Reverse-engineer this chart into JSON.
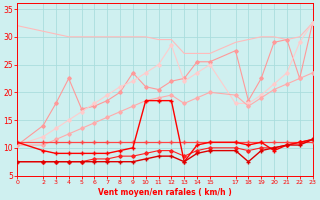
{
  "bg_color": "#cff0f0",
  "grid_color": "#aadddd",
  "x_ticks": [
    0,
    2,
    3,
    4,
    5,
    6,
    7,
    8,
    9,
    10,
    11,
    12,
    13,
    14,
    15,
    17,
    18,
    19,
    20,
    21,
    22,
    23
  ],
  "xlabel": "Vent moyen/en rafales ( km/h )",
  "ylim": [
    5,
    36
  ],
  "xlim": [
    0,
    23
  ],
  "yticks": [
    5,
    10,
    15,
    20,
    25,
    30,
    35
  ],
  "line1_x": [
    0,
    2,
    3,
    4,
    5,
    6,
    7,
    8,
    9,
    10,
    11,
    12,
    13,
    14,
    15,
    17,
    18,
    19,
    20,
    21,
    22,
    23
  ],
  "line1_y": [
    32.0,
    31.0,
    30.5,
    30.0,
    30.0,
    30.0,
    30.0,
    30.0,
    30.0,
    30.0,
    29.5,
    29.5,
    27.0,
    27.0,
    27.0,
    29.0,
    29.5,
    30.0,
    30.0,
    29.5,
    30.0,
    32.5
  ],
  "line1_color": "#ffbbbb",
  "line1_lw": 0.8,
  "line2_x": [
    0,
    2,
    3,
    4,
    5,
    6,
    7,
    8,
    9,
    10,
    11,
    12,
    13,
    14,
    15,
    17,
    18,
    19,
    20,
    21,
    22,
    23
  ],
  "line2_y": [
    10.5,
    14.0,
    18.0,
    22.5,
    17.0,
    17.5,
    18.5,
    20.0,
    23.5,
    21.0,
    20.5,
    22.0,
    22.5,
    25.5,
    25.5,
    27.5,
    18.5,
    22.5,
    29.0,
    29.5,
    22.5,
    32.5
  ],
  "line2_color": "#ff9999",
  "line2_lw": 0.8,
  "line2_marker": "D",
  "line3_x": [
    0,
    2,
    3,
    4,
    5,
    6,
    7,
    8,
    9,
    10,
    11,
    12,
    13,
    14,
    15,
    17,
    18,
    19,
    20,
    21,
    22,
    23
  ],
  "line3_y": [
    10.5,
    12.0,
    13.5,
    15.0,
    16.5,
    18.0,
    19.5,
    21.0,
    22.0,
    23.5,
    25.0,
    28.5,
    22.0,
    23.5,
    25.0,
    18.0,
    18.0,
    19.5,
    21.5,
    23.5,
    29.0,
    32.5
  ],
  "line3_color": "#ffcccc",
  "line3_lw": 0.8,
  "line3_marker": "D",
  "line4_x": [
    0,
    2,
    3,
    4,
    5,
    6,
    7,
    8,
    9,
    10,
    11,
    12,
    13,
    14,
    15,
    17,
    18,
    19,
    20,
    21,
    22,
    23
  ],
  "line4_y": [
    10.5,
    10.5,
    11.5,
    12.5,
    13.5,
    14.5,
    15.5,
    16.5,
    17.5,
    18.5,
    19.0,
    19.5,
    18.0,
    19.0,
    20.0,
    19.5,
    17.5,
    19.0,
    20.5,
    21.5,
    22.5,
    23.5
  ],
  "line4_color": "#ffaaaa",
  "line4_lw": 0.8,
  "line4_marker": "D",
  "line5_x": [
    0,
    2,
    3,
    4,
    5,
    6,
    7,
    8,
    9,
    10,
    11,
    12,
    13,
    14,
    15,
    17,
    18,
    19,
    20,
    21,
    22,
    23
  ],
  "line5_y": [
    11.0,
    11.0,
    11.0,
    11.0,
    11.0,
    11.0,
    11.0,
    11.0,
    11.0,
    11.0,
    11.0,
    11.0,
    11.0,
    11.0,
    11.0,
    11.0,
    11.0,
    11.0,
    11.0,
    11.0,
    11.0,
    11.0
  ],
  "line5_color": "#ff4444",
  "line5_lw": 0.9,
  "line5_marker": "+",
  "line6_x": [
    0,
    2,
    3,
    4,
    5,
    6,
    7,
    8,
    9,
    10,
    11,
    12,
    13,
    14,
    15,
    17,
    18,
    19,
    20,
    21,
    22,
    23
  ],
  "line6_y": [
    11.0,
    9.5,
    9.0,
    9.0,
    9.0,
    9.0,
    9.0,
    9.5,
    10.0,
    18.5,
    18.5,
    18.5,
    7.5,
    10.5,
    11.0,
    11.0,
    10.5,
    11.0,
    9.5,
    10.5,
    11.0,
    11.5
  ],
  "line6_color": "#ff0000",
  "line6_lw": 1.0,
  "line6_marker": "+",
  "line7_x": [
    0,
    2,
    3,
    4,
    5,
    6,
    7,
    8,
    9,
    10,
    11,
    12,
    13,
    14,
    15,
    17,
    18,
    19,
    20,
    21,
    22,
    23
  ],
  "line7_y": [
    7.5,
    7.5,
    7.5,
    7.5,
    7.5,
    7.5,
    7.5,
    7.5,
    7.5,
    8.0,
    8.5,
    8.5,
    7.5,
    9.0,
    9.5,
    9.5,
    7.5,
    9.5,
    10.0,
    10.5,
    10.5,
    11.5
  ],
  "line7_color": "#dd0000",
  "line7_lw": 1.0,
  "line7_marker": "+",
  "line8_x": [
    0,
    2,
    3,
    4,
    5,
    6,
    7,
    8,
    9,
    10,
    11,
    12,
    13,
    14,
    15,
    17,
    18,
    19,
    20,
    21,
    22,
    23
  ],
  "line8_y": [
    7.5,
    7.5,
    7.5,
    7.5,
    7.5,
    8.0,
    8.0,
    8.5,
    8.5,
    9.0,
    9.5,
    9.5,
    8.5,
    9.5,
    10.0,
    10.0,
    9.5,
    10.0,
    10.0,
    10.5,
    11.0,
    11.5
  ],
  "line8_color": "#ff2222",
  "line8_lw": 0.8,
  "line8_marker": "D"
}
